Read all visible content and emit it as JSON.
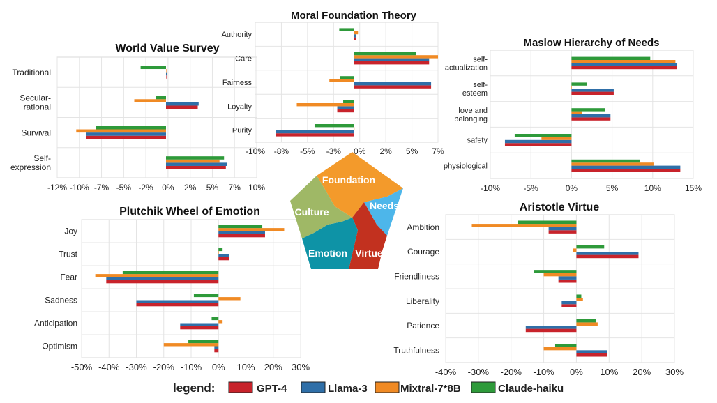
{
  "colors": {
    "GPT-4": "#c8232b",
    "Llama-3": "#2f6fa8",
    "Mixtral-7*8B": "#f08a24",
    "Claude-haiku": "#2e9a3a"
  },
  "legend": {
    "title": "legend:",
    "entries": [
      "GPT-4",
      "Llama-3",
      "Mixtral-7*8B",
      "Claude-haiku"
    ]
  },
  "center_pentagon": {
    "segments": [
      {
        "label": "Foundation",
        "color": "#f39a2b"
      },
      {
        "label": "Needs",
        "color": "#4db6ea"
      },
      {
        "label": "Virtue",
        "color": "#c2311f"
      },
      {
        "label": "Emotion",
        "color": "#0e93a6"
      },
      {
        "label": "Culture",
        "color": "#9fb866"
      }
    ]
  },
  "chart_data": [
    {
      "id": "wvs",
      "type": "bar",
      "title": "World Value Survey",
      "categories": [
        "Traditional",
        "Secular-\nrational",
        "Survival",
        "Self-\nexpression"
      ],
      "xlim": [
        -12,
        10
      ],
      "xticks": [
        "-12%",
        "-10%",
        "-7%",
        "-5%",
        "-2%",
        "0%",
        "2%",
        "5%",
        "7%",
        "10%"
      ],
      "series": [
        {
          "name": "GPT-4",
          "values": [
            0,
            3.5,
            -8.8,
            6.6
          ]
        },
        {
          "name": "Llama-3",
          "values": [
            0.1,
            3.6,
            -8.8,
            6.7
          ]
        },
        {
          "name": "Mixtral-7*8B",
          "values": [
            0,
            -3.5,
            -9.9,
            5.9
          ]
        },
        {
          "name": "Claude-haiku",
          "values": [
            -2.8,
            -1.1,
            -7.7,
            6.4
          ]
        }
      ]
    },
    {
      "id": "mft",
      "type": "bar",
      "title": "Moral Foundation Theory",
      "categories": [
        "Authority",
        "Care",
        "Fairness",
        "Loyalty",
        "Purity"
      ],
      "xlim": [
        -10,
        8.5
      ],
      "xticks": [
        "-10%",
        "-8%",
        "-5%",
        "-3%",
        "0%",
        "2%",
        "5%",
        "7%"
      ],
      "series": [
        {
          "name": "GPT-4",
          "values": [
            0.2,
            7.6,
            7.8,
            -1.7,
            -7.9
          ]
        },
        {
          "name": "Llama-3",
          "values": [
            0.2,
            7.6,
            7.8,
            -1.7,
            -7.9
          ]
        },
        {
          "name": "Mixtral-7*8B",
          "values": [
            0.4,
            8.5,
            -2.5,
            -5.8,
            0
          ]
        },
        {
          "name": "Claude-haiku",
          "values": [
            -1.5,
            6.3,
            -1.4,
            -1.1,
            -4.0
          ]
        }
      ]
    },
    {
      "id": "maslow",
      "type": "bar",
      "title": "Maslow Hierarchy of Needs",
      "categories": [
        "self-\nactualization",
        "self-\nesteem",
        "love and\nbelonging",
        "safety",
        "physiological"
      ],
      "xlim": [
        -10,
        15
      ],
      "xticks": [
        "-10%",
        "-5%",
        "0%",
        "5%",
        "10%",
        "15%"
      ],
      "series": [
        {
          "name": "GPT-4",
          "values": [
            13.0,
            5.2,
            4.8,
            -8.2,
            13.4
          ]
        },
        {
          "name": "Llama-3",
          "values": [
            13.0,
            5.2,
            4.8,
            -8.2,
            13.4
          ]
        },
        {
          "name": "Mixtral-7*8B",
          "values": [
            12.8,
            0,
            1.3,
            -3.7,
            10.1
          ]
        },
        {
          "name": "Claude-haiku",
          "values": [
            9.7,
            1.9,
            4.1,
            -7.0,
            8.4
          ]
        }
      ]
    },
    {
      "id": "plutchik",
      "type": "bar",
      "title": "Plutchik Wheel of Emotion",
      "categories": [
        "Joy",
        "Trust",
        "Fear",
        "Sadness",
        "Anticipation",
        "Optimism"
      ],
      "xlim": [
        -50,
        30
      ],
      "xticks": [
        "-50%",
        "-40%",
        "-30%",
        "-20%",
        "-10%",
        "0%",
        "10%",
        "20%",
        "30%"
      ],
      "series": [
        {
          "name": "GPT-4",
          "values": [
            17,
            4,
            -41,
            -30,
            -14,
            -1.5
          ]
        },
        {
          "name": "Llama-3",
          "values": [
            17,
            4,
            -41,
            -30,
            -14,
            -1.5
          ]
        },
        {
          "name": "Mixtral-7*8B",
          "values": [
            24,
            0,
            -45,
            8,
            1.5,
            -20
          ]
        },
        {
          "name": "Claude-haiku",
          "values": [
            16,
            1.5,
            -35,
            -9,
            -2.5,
            -11
          ]
        }
      ]
    },
    {
      "id": "aristotle",
      "type": "bar",
      "title": "Aristotle Virtue",
      "categories": [
        "Ambition",
        "Courage",
        "Friendliness",
        "Liberality",
        "Patience",
        "Truthfulness"
      ],
      "xlim": [
        -40,
        30
      ],
      "xticks": [
        "-40%",
        "-30%",
        "-20%",
        "-10%",
        "0%",
        "10%",
        "20%",
        "30%"
      ],
      "series": [
        {
          "name": "GPT-4",
          "values": [
            -8.5,
            19,
            -5.5,
            -4.5,
            -15.5,
            9.5
          ]
        },
        {
          "name": "Llama-3",
          "values": [
            -8.5,
            19,
            -5.5,
            -4.5,
            -15.5,
            9.5
          ]
        },
        {
          "name": "Mixtral-7*8B",
          "values": [
            -32,
            -1,
            -10,
            2,
            6.5,
            -10
          ]
        },
        {
          "name": "Claude-haiku",
          "values": [
            -18,
            8.5,
            -13,
            1.5,
            6,
            -6.5
          ]
        }
      ]
    }
  ]
}
